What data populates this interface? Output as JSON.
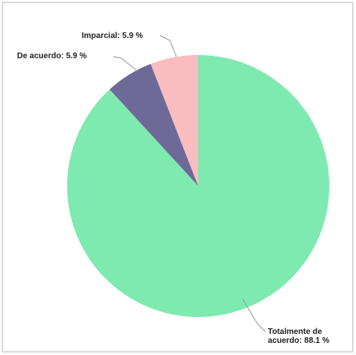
{
  "chart_data": {
    "type": "pie",
    "categories": [
      "Totalmente de acuerdo",
      "De acuerdo",
      "Imparcial"
    ],
    "values": [
      88.1,
      5.9,
      5.9
    ],
    "value_labels": [
      "Totalmente de acuerdo: 88.1 %",
      "De acuerdo: 5.9 %",
      "Imparcial: 5.9 %"
    ],
    "colors": [
      "#7eeab0",
      "#6d6a98",
      "#f9bdc0"
    ]
  }
}
